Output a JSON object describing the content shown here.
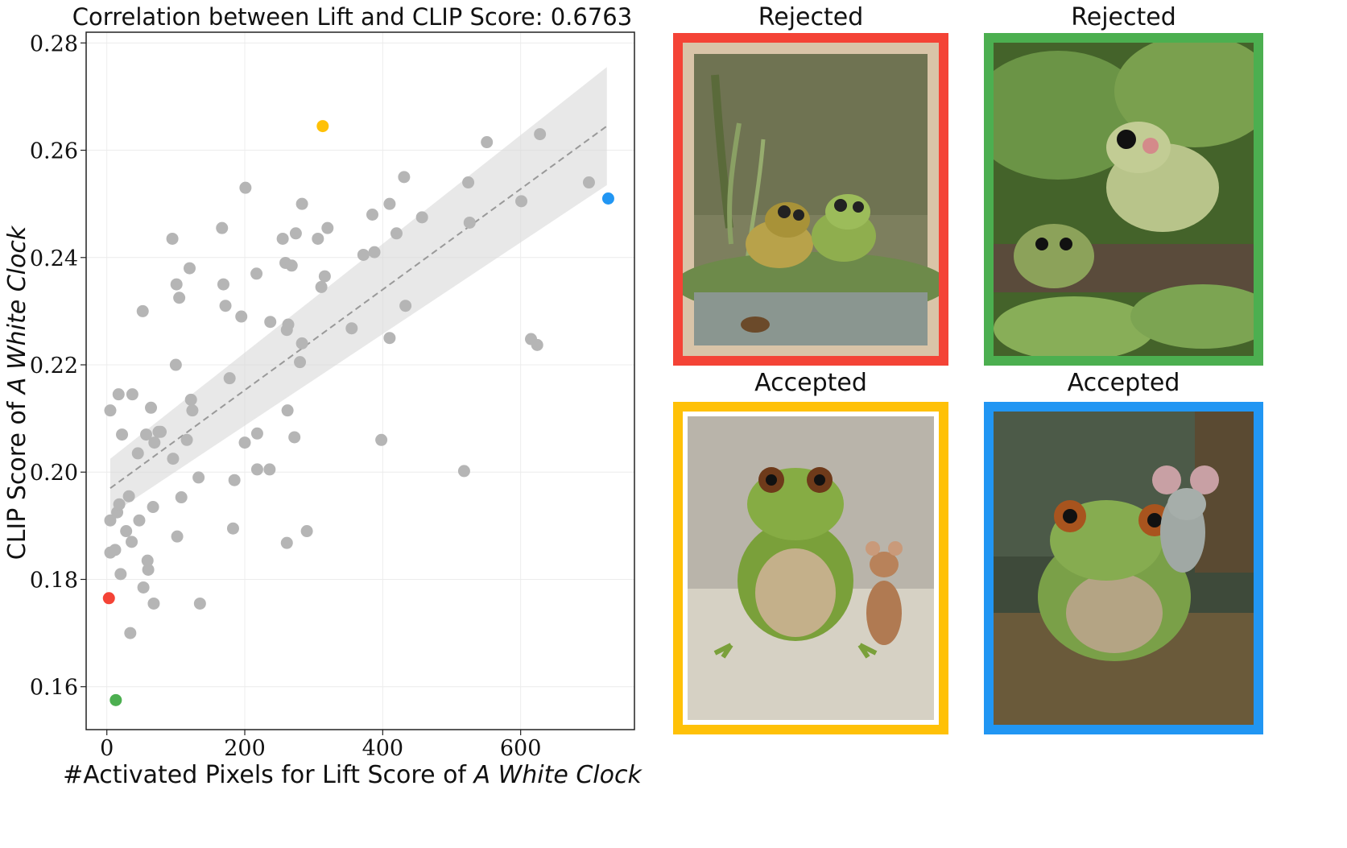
{
  "chart_data": {
    "type": "scatter",
    "title": "Correlation between Lift and CLIP Score: 0.6763",
    "xlabel_prefix": "#Activated Pixels for Lift Score of ",
    "xlabel_emph": "A White Clock",
    "ylabel_prefix": "CLIP Score of ",
    "ylabel_emph": "A White Clock",
    "xlim": [
      -30,
      765
    ],
    "ylim": [
      0.152,
      0.282
    ],
    "xticks": [
      0,
      200,
      400,
      600
    ],
    "yticks": [
      0.16,
      0.18,
      0.2,
      0.22,
      0.24,
      0.26,
      0.28
    ],
    "ytick_labels": [
      "0.16",
      "0.18",
      "0.20",
      "0.22",
      "0.24",
      "0.26",
      "0.28"
    ],
    "grid": true,
    "regression": {
      "x": [
        5,
        725
      ],
      "y": [
        0.197,
        0.2645
      ],
      "band_lower": [
        0.192,
        0.2535
      ],
      "band_upper": [
        0.2025,
        0.2755
      ]
    },
    "points_color": "#b5b5b5",
    "points": [
      [
        5,
        0.2115
      ],
      [
        5,
        0.191
      ],
      [
        5,
        0.185
      ],
      [
        12,
        0.1855
      ],
      [
        15,
        0.1925
      ],
      [
        17,
        0.2145
      ],
      [
        18,
        0.194
      ],
      [
        20,
        0.181
      ],
      [
        22,
        0.207
      ],
      [
        28,
        0.189
      ],
      [
        32,
        0.1955
      ],
      [
        34,
        0.17
      ],
      [
        36,
        0.187
      ],
      [
        37,
        0.2145
      ],
      [
        45,
        0.2035
      ],
      [
        47,
        0.191
      ],
      [
        52,
        0.23
      ],
      [
        53,
        0.1785
      ],
      [
        57,
        0.207
      ],
      [
        59,
        0.1835
      ],
      [
        60,
        0.1818
      ],
      [
        64,
        0.212
      ],
      [
        67,
        0.1935
      ],
      [
        68,
        0.1755
      ],
      [
        69,
        0.2055
      ],
      [
        75,
        0.2075
      ],
      [
        78,
        0.2075
      ],
      [
        95,
        0.2435
      ],
      [
        96,
        0.2025
      ],
      [
        100,
        0.22
      ],
      [
        101,
        0.235
      ],
      [
        102,
        0.188
      ],
      [
        105,
        0.2325
      ],
      [
        108,
        0.1953
      ],
      [
        116,
        0.206
      ],
      [
        120,
        0.238
      ],
      [
        122,
        0.2135
      ],
      [
        124,
        0.2115
      ],
      [
        133,
        0.199
      ],
      [
        135,
        0.1755
      ],
      [
        167,
        0.2455
      ],
      [
        169,
        0.235
      ],
      [
        172,
        0.231
      ],
      [
        178,
        0.2175
      ],
      [
        183,
        0.1895
      ],
      [
        185,
        0.1985
      ],
      [
        195,
        0.229
      ],
      [
        200,
        0.2055
      ],
      [
        201,
        0.253
      ],
      [
        217,
        0.237
      ],
      [
        218,
        0.2072
      ],
      [
        218,
        0.2005
      ],
      [
        236,
        0.2005
      ],
      [
        237,
        0.228
      ],
      [
        255,
        0.2435
      ],
      [
        259,
        0.239
      ],
      [
        261,
        0.2265
      ],
      [
        261,
        0.1868
      ],
      [
        262,
        0.2115
      ],
      [
        263,
        0.2275
      ],
      [
        268,
        0.2385
      ],
      [
        272,
        0.2065
      ],
      [
        274,
        0.2445
      ],
      [
        280,
        0.2205
      ],
      [
        283,
        0.224
      ],
      [
        283,
        0.25
      ],
      [
        290,
        0.189
      ],
      [
        306,
        0.2435
      ],
      [
        311,
        0.2345
      ],
      [
        316,
        0.2365
      ],
      [
        320,
        0.2455
      ],
      [
        355,
        0.2268
      ],
      [
        372,
        0.2405
      ],
      [
        385,
        0.248
      ],
      [
        388,
        0.241
      ],
      [
        398,
        0.206
      ],
      [
        410,
        0.25
      ],
      [
        410,
        0.225
      ],
      [
        420,
        0.2445
      ],
      [
        431,
        0.255
      ],
      [
        433,
        0.231
      ],
      [
        457,
        0.2475
      ],
      [
        518,
        0.2002
      ],
      [
        524,
        0.254
      ],
      [
        526,
        0.2465
      ],
      [
        551,
        0.2615
      ],
      [
        601,
        0.2505
      ],
      [
        615,
        0.2248
      ],
      [
        624,
        0.2237
      ],
      [
        628,
        0.263
      ],
      [
        699,
        0.254
      ]
    ],
    "highlighted_points": [
      {
        "x": 3,
        "y": 0.1765,
        "color": "#f44336"
      },
      {
        "x": 13,
        "y": 0.1575,
        "color": "#4caf50"
      },
      {
        "x": 313,
        "y": 0.2645,
        "color": "#ffc107"
      },
      {
        "x": 727,
        "y": 0.251,
        "color": "#2196f3"
      }
    ]
  },
  "panels": [
    {
      "title": "Rejected",
      "border_color": "#f44336"
    },
    {
      "title": "Rejected",
      "border_color": "#4caf50"
    },
    {
      "title": "Accepted",
      "border_color": "#ffc107"
    },
    {
      "title": "Accepted",
      "border_color": "#2196f3"
    }
  ]
}
